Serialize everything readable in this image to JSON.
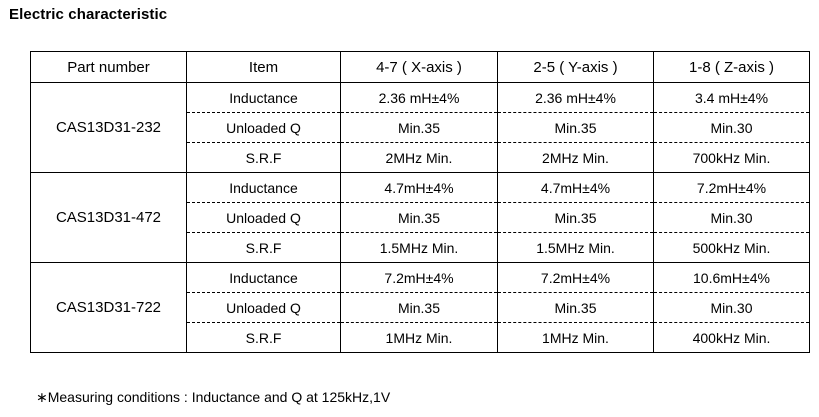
{
  "title": "Electric characteristic",
  "table": {
    "headers": {
      "part": "Part number",
      "item": "Item",
      "x": "4-7 ( X-axis )",
      "y": "2-5 ( Y-axis )",
      "z": "1-8 ( Z-axis )"
    },
    "groups": [
      {
        "part": "CAS13D31-232",
        "rows": [
          {
            "item": "Inductance",
            "x": "2.36 mH±4%",
            "y": "2.36 mH±4%",
            "z": "3.4 mH±4%"
          },
          {
            "item": "Unloaded Q",
            "x": "Min.35",
            "y": "Min.35",
            "z": "Min.30"
          },
          {
            "item": "S.R.F",
            "x": "2MHz Min.",
            "y": "2MHz Min.",
            "z": "700kHz Min."
          }
        ]
      },
      {
        "part": "CAS13D31-472",
        "rows": [
          {
            "item": "Inductance",
            "x": "4.7mH±4%",
            "y": "4.7mH±4%",
            "z": "7.2mH±4%"
          },
          {
            "item": "Unloaded Q",
            "x": "Min.35",
            "y": "Min.35",
            "z": "Min.30"
          },
          {
            "item": "S.R.F",
            "x": "1.5MHz Min.",
            "y": "1.5MHz Min.",
            "z": "500kHz Min."
          }
        ]
      },
      {
        "part": "CAS13D31-722",
        "rows": [
          {
            "item": "Inductance",
            "x": "7.2mH±4%",
            "y": "7.2mH±4%",
            "z": "10.6mH±4%"
          },
          {
            "item": "Unloaded Q",
            "x": "Min.35",
            "y": "Min.35",
            "z": "Min.30"
          },
          {
            "item": "S.R.F",
            "x": "1MHz Min.",
            "y": "1MHz Min.",
            "z": "400kHz Min."
          }
        ]
      }
    ]
  },
  "footnote": "∗Measuring conditions : Inductance and Q at 125kHz,1V"
}
